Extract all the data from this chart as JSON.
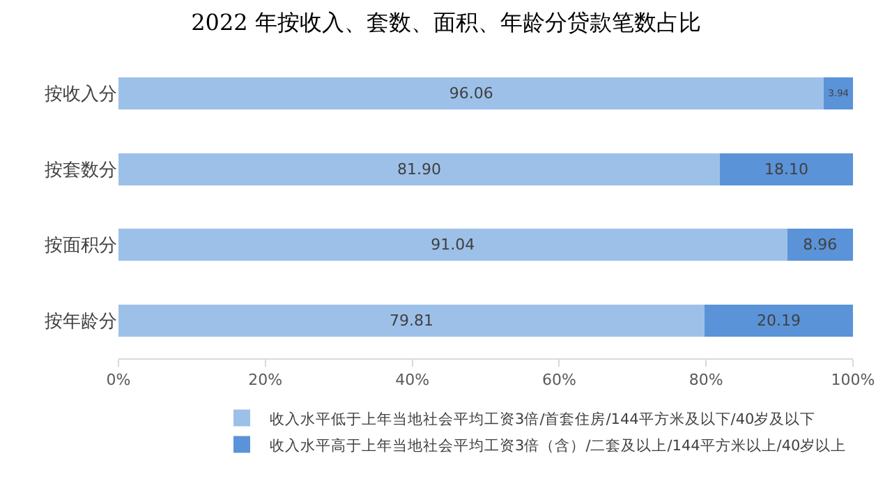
{
  "chart_data": {
    "type": "bar",
    "orientation": "horizontal",
    "stacked": true,
    "title": "2022 年按收入、套数、面积、年龄分贷款笔数占比",
    "categories": [
      "按收入分",
      "按套数分",
      "按面积分",
      "按年龄分"
    ],
    "series": [
      {
        "name": "收入水平低于上年当地社会平均工资3倍/首套住房/144平方米及以下/40岁及以下",
        "color": "#9dc0e8",
        "values": [
          96.06,
          81.9,
          91.04,
          79.81
        ]
      },
      {
        "name": "收入水平高于上年当地社会平均工资3倍（含）/二套及以上/144平方米以上/40岁以上",
        "color": "#5a93d8",
        "values": [
          3.94,
          18.1,
          8.96,
          20.19
        ]
      }
    ],
    "value_labels": [
      [
        "96.06",
        "81.90",
        "91.04",
        "79.81"
      ],
      [
        "3.94",
        "18.10",
        "8.96",
        "20.19"
      ]
    ],
    "xlim": [
      0,
      100
    ],
    "xticks": [
      {
        "value": 0,
        "label": "0%"
      },
      {
        "value": 20,
        "label": "20%"
      },
      {
        "value": 40,
        "label": "40%"
      },
      {
        "value": 60,
        "label": "60%"
      },
      {
        "value": 80,
        "label": "80%"
      },
      {
        "value": 100,
        "label": "100%"
      }
    ],
    "grid": false,
    "legend": "bottom"
  }
}
